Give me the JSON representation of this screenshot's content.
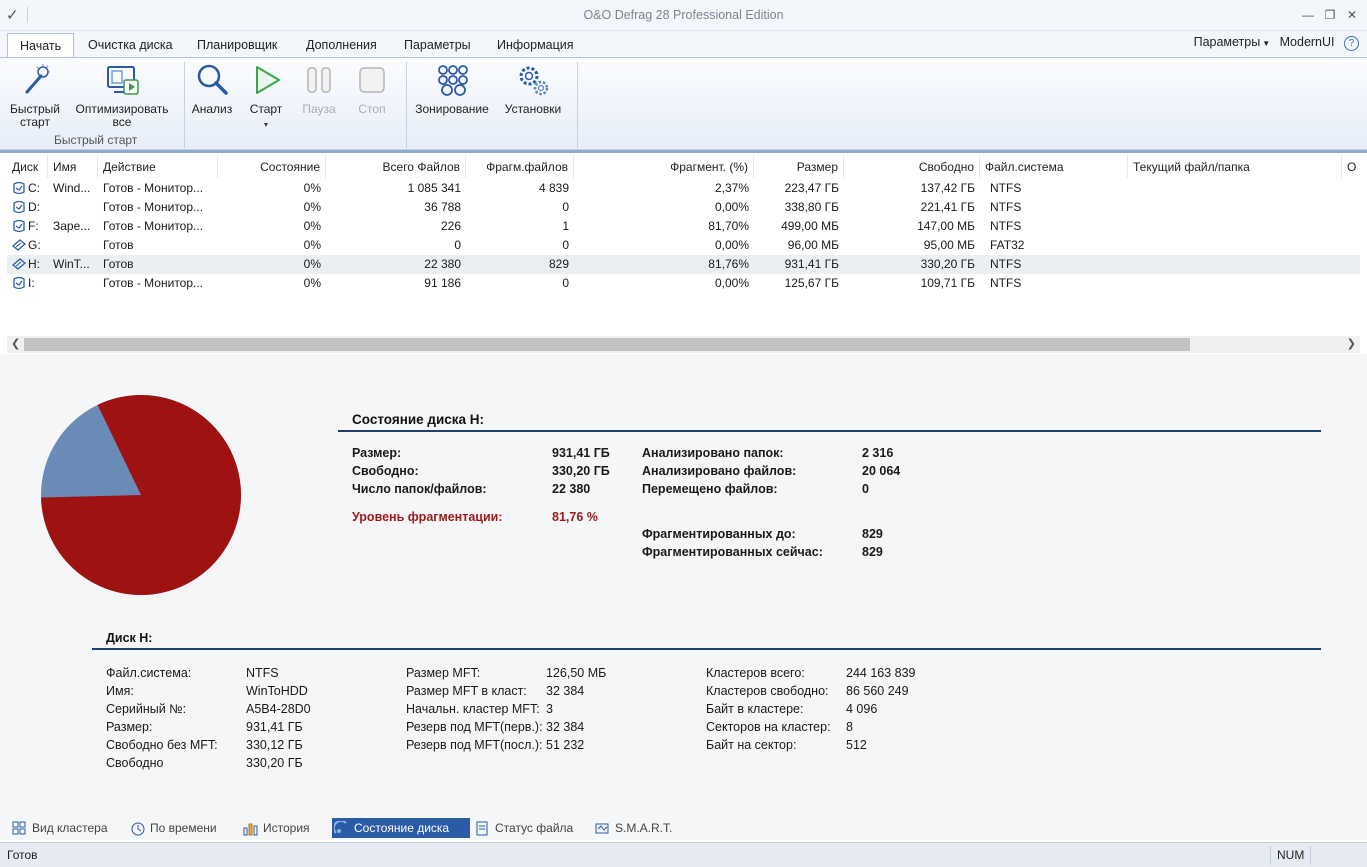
{
  "app": {
    "title": "O&O Defrag 28 Professional Edition"
  },
  "tabs": [
    "Начать",
    "Очистка диска",
    "Планировщик",
    "Дополнения",
    "Параметры",
    "Информация"
  ],
  "tabs_right": {
    "params": "Параметры",
    "modern": "ModernUI",
    "help": "?"
  },
  "ribbon": {
    "quick_start": "Быстрый старт",
    "optimize_all": "Оптимизировать все",
    "group_quick": "Быстрый старт",
    "analysis": "Анализ",
    "start": "Старт",
    "pause": "Пауза",
    "stop": "Стоп",
    "zoning": "Зонирование",
    "settings": "Установки"
  },
  "grid": {
    "headers": [
      "Диск",
      "Имя",
      "Действие",
      "Состояние",
      "Всего Файлов",
      "Фрагм.файлов",
      "Фрагмент. (%)",
      "Размер",
      "Свободно",
      "Файл.система",
      "Текущий файл/папка",
      "О"
    ],
    "rows": [
      {
        "disk": "C:",
        "name": "Wind...",
        "action": "Готов - Монитор...",
        "state": "0%",
        "total": "1 085 341",
        "frag": "4 839",
        "fragpct": "2,37%",
        "size": "223,47 ГБ",
        "free": "137,42 ГБ",
        "fs": "NTFS"
      },
      {
        "disk": "D:",
        "name": "",
        "action": "Готов - Монитор...",
        "state": "0%",
        "total": "36 788",
        "frag": "0",
        "fragpct": "0,00%",
        "size": "338,80 ГБ",
        "free": "221,41 ГБ",
        "fs": "NTFS"
      },
      {
        "disk": "F:",
        "name": "Заре...",
        "action": "Готов - Монитор...",
        "state": "0%",
        "total": "226",
        "frag": "1",
        "fragpct": "81,70%",
        "size": "499,00 МБ",
        "free": "147,00 МБ",
        "fs": "NTFS"
      },
      {
        "disk": "G:",
        "name": "",
        "action": "Готов",
        "state": "0%",
        "total": "0",
        "frag": "0",
        "fragpct": "0,00%",
        "size": "96,00 МБ",
        "free": "95,00 МБ",
        "fs": "FAT32"
      },
      {
        "disk": "H:",
        "name": "WinT...",
        "action": "Готов",
        "state": "0%",
        "total": "22 380",
        "frag": "829",
        "fragpct": "81,76%",
        "size": "931,41 ГБ",
        "free": "330,20 ГБ",
        "fs": "NTFS"
      },
      {
        "disk": "I:",
        "name": "",
        "action": "Готов - Монитор...",
        "state": "0%",
        "total": "91 186",
        "frag": "0",
        "fragpct": "0,00%",
        "size": "125,67 ГБ",
        "free": "109,71 ГБ",
        "fs": "NTFS"
      }
    ]
  },
  "disk_state": {
    "title": "Состояние диска H:",
    "size_label": "Размер:",
    "size": "931,41 ГБ",
    "free_label": "Свободно:",
    "free": "330,20 ГБ",
    "count_label": "Число папок/файлов:",
    "count": "22 380",
    "frag_label": "Уровень фрагментации:",
    "frag": "81,76 %",
    "folders_label": "Анализировано папок:",
    "folders": "2 316",
    "files_label": "Анализировано файлов:",
    "files": "20 064",
    "moved_label": "Перемещено файлов:",
    "moved": "0",
    "before_label": "Фрагментированных до:",
    "before": "829",
    "now_label": "Фрагментированных сейчас:",
    "now": "829"
  },
  "pie": {
    "fragmented_fraction": 0.8176,
    "colors": {
      "fragmented": "#9e1212",
      "other": "#6a8bb6"
    }
  },
  "disk_info": {
    "title": "Диск H:",
    "col1": [
      [
        "Файл.система:",
        "NTFS"
      ],
      [
        "Имя:",
        "WinToHDD"
      ],
      [
        "Серийный №:",
        "A5B4-28D0"
      ],
      [
        "Размер:",
        "931,41 ГБ"
      ],
      [
        "Свободно без MFT:",
        "330,12 ГБ"
      ],
      [
        "Свободно",
        "330,20 ГБ"
      ]
    ],
    "col2": [
      [
        "Размер MFT:",
        "126,50 МБ"
      ],
      [
        "Размер MFT в класт:",
        "32 384"
      ],
      [
        "Начальн. кластер MFT:",
        "3"
      ],
      [
        "Резерв под MFT(перв.):",
        "32 384"
      ],
      [
        "Резерв под MFT(посл.):",
        "51 232"
      ]
    ],
    "col3": [
      [
        "Кластеров всего:",
        "244 163 839"
      ],
      [
        "Кластеров свободно:",
        "86 560 249"
      ],
      [
        "Байт в кластере:",
        "4 096"
      ],
      [
        "Секторов на кластер:",
        "8"
      ],
      [
        "Байт на сектор:",
        "512"
      ]
    ]
  },
  "bottom_tabs": [
    "Вид кластера",
    "По времени",
    "История",
    "Состояние диска",
    "Статус файла",
    "S.M.A.R.T."
  ],
  "status": {
    "text": "Готов",
    "num": "NUM"
  }
}
